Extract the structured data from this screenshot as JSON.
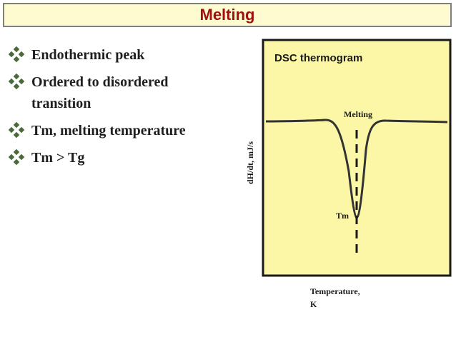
{
  "title": "Melting",
  "bullets": [
    {
      "icon": "diamond-bullet-icon",
      "line1": "Endothermic peak",
      "line2": ""
    },
    {
      "icon": "diamond-bullet-icon",
      "line1": "Ordered to disordered",
      "line2": "transition"
    },
    {
      "icon": "diamond-bullet-icon",
      "line1": "Tm, melting temperature",
      "line2": ""
    },
    {
      "icon": "diamond-bullet-icon",
      "line1": "Tm > Tg",
      "line2": ""
    }
  ],
  "thermogram": {
    "title": "DSC thermogram",
    "peak_label": "Melting",
    "tm_label": "Tm",
    "y_axis_label": "dH/dt, mJ/s",
    "x_axis_label_line1": "Temperature,",
    "x_axis_label_line2": "K",
    "box_color": "#fcf7a6",
    "border_color": "#1a1a1a",
    "accent_title_color": "#a01010"
  }
}
